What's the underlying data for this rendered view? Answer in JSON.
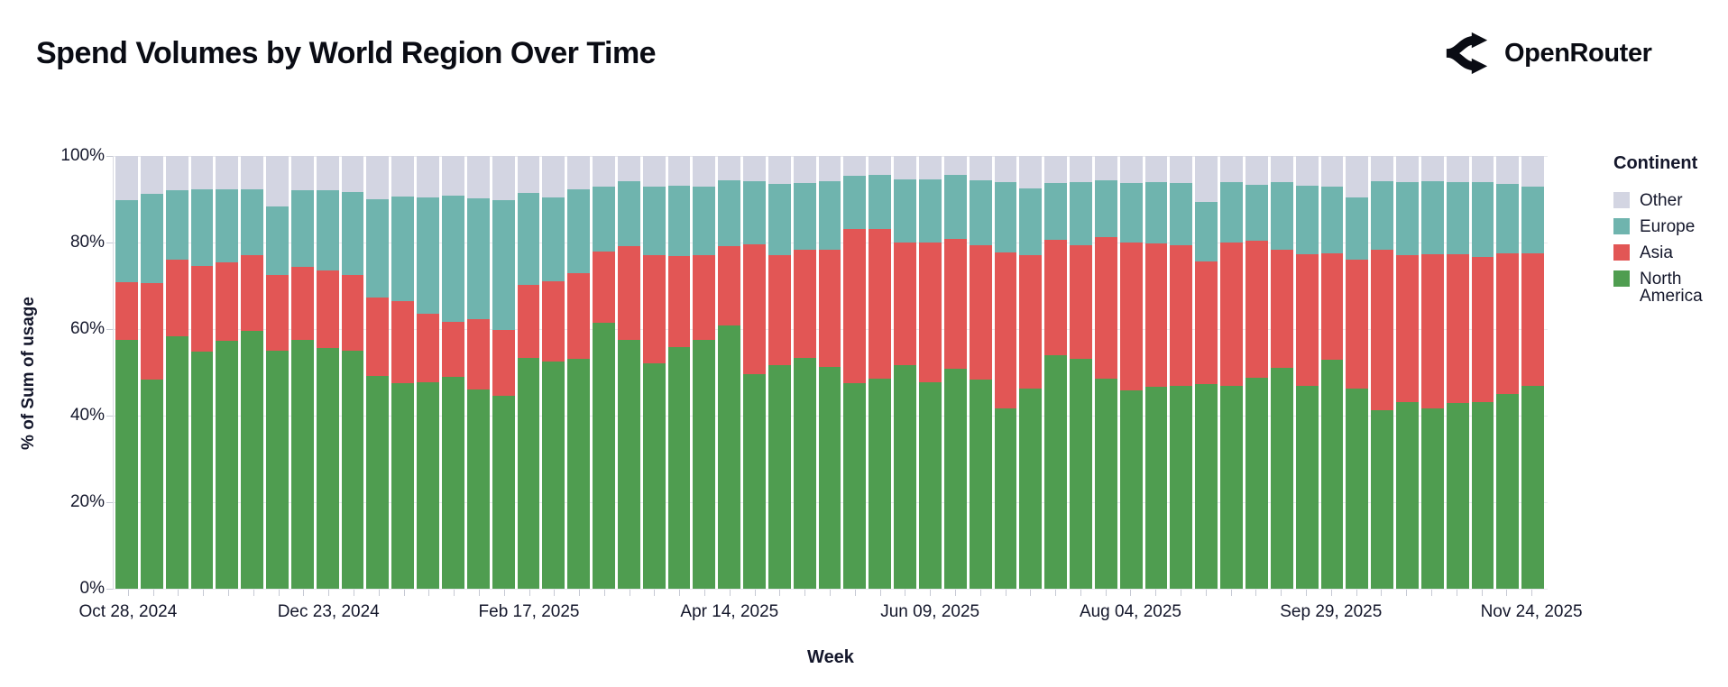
{
  "header": {
    "title": "Spend Volumes by World Region Over Time",
    "brand": "OpenRouter"
  },
  "chart": {
    "y_axis": {
      "title": "% of Sum of usage",
      "ticks": [
        "100%",
        "80%",
        "60%",
        "40%",
        "20%",
        "0%"
      ]
    },
    "x_axis": {
      "title": "Week",
      "tick_labels": [
        "Oct 28, 2024",
        "Dec 23, 2024",
        "Feb 17, 2025",
        "Apr 14, 2025",
        "Jun 09, 2025",
        "Aug 04, 2025",
        "Sep 29, 2025",
        "Nov 24, 2025"
      ],
      "tick_indices": [
        0,
        8,
        16,
        24,
        32,
        40,
        48,
        56
      ]
    },
    "legend": {
      "title": "Continent",
      "items": [
        {
          "label": "Other",
          "color": "#d3d5e2"
        },
        {
          "label": "Europe",
          "color": "#6fb4ae"
        },
        {
          "label": "Asia",
          "color": "#e25655"
        },
        {
          "label": "North America",
          "color": "#4f9d50"
        }
      ]
    }
  },
  "chart_data": {
    "type": "bar",
    "stacked": true,
    "normalized_100pct": true,
    "title": "Spend Volumes by World Region Over Time",
    "xlabel": "Week",
    "ylabel": "% of Sum of usage",
    "ylim": [
      0,
      100
    ],
    "grid": "horizontal",
    "legend_position": "right",
    "categories": [
      "Oct 28, 2024",
      "Nov 04, 2024",
      "Nov 11, 2024",
      "Nov 18, 2024",
      "Nov 25, 2024",
      "Dec 02, 2024",
      "Dec 09, 2024",
      "Dec 16, 2024",
      "Dec 23, 2024",
      "Dec 30, 2024",
      "Jan 06, 2025",
      "Jan 13, 2025",
      "Jan 20, 2025",
      "Jan 27, 2025",
      "Feb 03, 2025",
      "Feb 10, 2025",
      "Feb 17, 2025",
      "Feb 24, 2025",
      "Mar 03, 2025",
      "Mar 10, 2025",
      "Mar 17, 2025",
      "Mar 24, 2025",
      "Mar 31, 2025",
      "Apr 07, 2025",
      "Apr 14, 2025",
      "Apr 21, 2025",
      "Apr 28, 2025",
      "May 05, 2025",
      "May 12, 2025",
      "May 19, 2025",
      "May 26, 2025",
      "Jun 02, 2025",
      "Jun 09, 2025",
      "Jun 16, 2025",
      "Jun 23, 2025",
      "Jun 30, 2025",
      "Jul 07, 2025",
      "Jul 14, 2025",
      "Jul 21, 2025",
      "Jul 28, 2025",
      "Aug 04, 2025",
      "Aug 11, 2025",
      "Aug 18, 2025",
      "Aug 25, 2025",
      "Sep 01, 2025",
      "Sep 08, 2025",
      "Sep 15, 2025",
      "Sep 22, 2025",
      "Sep 29, 2025",
      "Oct 06, 2025",
      "Oct 13, 2025",
      "Oct 20, 2025",
      "Oct 27, 2025",
      "Nov 03, 2025",
      "Nov 10, 2025",
      "Nov 17, 2025",
      "Nov 24, 2025"
    ],
    "series": [
      {
        "name": "North America",
        "color": "#4f9d50",
        "values": [
          57.6,
          48.3,
          58.3,
          54.8,
          57.2,
          59.5,
          55.1,
          57.4,
          55.6,
          55.1,
          49.2,
          47.5,
          47.8,
          48.9,
          46.1,
          44.5,
          53.3,
          52.6,
          53.2,
          61.4,
          57.6,
          52.0,
          55.8,
          57.5,
          60.8,
          49.5,
          51.7,
          53.3,
          51.3,
          47.4,
          48.6,
          51.6,
          47.8,
          50.8,
          48.3,
          41.6,
          46.2,
          54.0,
          53.2,
          48.5,
          45.8,
          46.6,
          46.9,
          47.2,
          46.9,
          48.7,
          51.0,
          46.9,
          53.0,
          46.3,
          41.2,
          43.1,
          41.6,
          43.0,
          43.1,
          45.1,
          46.8
        ]
      },
      {
        "name": "Asia",
        "color": "#e25655",
        "values": [
          13.2,
          22.3,
          17.7,
          19.8,
          18.3,
          17.6,
          17.4,
          17.0,
          18.0,
          17.4,
          18.1,
          18.9,
          15.8,
          12.8,
          16.3,
          15.3,
          16.9,
          18.5,
          19.8,
          16.5,
          21.5,
          25.0,
          21.0,
          19.5,
          18.4,
          30.1,
          25.4,
          25.0,
          27.1,
          35.8,
          34.5,
          28.5,
          32.3,
          30.0,
          31.1,
          36.2,
          30.9,
          26.6,
          26.2,
          32.7,
          34.2,
          33.2,
          32.4,
          28.4,
          33.1,
          31.7,
          27.3,
          30.4,
          24.5,
          29.8,
          37.2,
          34.0,
          35.6,
          34.2,
          33.6,
          32.5,
          30.8
        ]
      },
      {
        "name": "Europe",
        "color": "#6fb4ae",
        "values": [
          19.1,
          20.6,
          16.0,
          17.6,
          16.7,
          15.2,
          15.8,
          17.6,
          18.5,
          19.2,
          22.7,
          24.2,
          26.8,
          29.1,
          27.9,
          30.1,
          21.3,
          19.3,
          19.3,
          15.1,
          15.0,
          16.0,
          16.4,
          16.0,
          15.1,
          14.5,
          16.4,
          15.4,
          15.7,
          12.3,
          12.5,
          14.5,
          14.5,
          14.8,
          14.9,
          16.1,
          15.4,
          13.2,
          14.5,
          13.1,
          13.7,
          14.2,
          14.4,
          13.8,
          13.9,
          13.0,
          15.6,
          15.9,
          15.4,
          14.3,
          15.8,
          16.8,
          16.9,
          16.8,
          17.2,
          15.9,
          15.3
        ]
      },
      {
        "name": "Other",
        "color": "#d3d5e2",
        "values": [
          10.1,
          8.8,
          8.0,
          7.8,
          7.8,
          7.7,
          11.7,
          8.0,
          7.9,
          8.3,
          10.0,
          9.4,
          9.6,
          9.2,
          9.7,
          10.1,
          8.5,
          9.6,
          7.7,
          7.0,
          5.9,
          7.0,
          6.8,
          7.0,
          5.7,
          5.9,
          6.5,
          6.3,
          5.9,
          4.5,
          4.4,
          5.4,
          5.4,
          4.4,
          5.7,
          6.1,
          7.5,
          6.2,
          6.1,
          5.7,
          6.3,
          6.0,
          6.3,
          10.6,
          6.1,
          6.6,
          6.1,
          6.8,
          7.1,
          9.6,
          5.8,
          6.1,
          5.9,
          6.0,
          6.1,
          6.5,
          7.1
        ]
      }
    ]
  }
}
